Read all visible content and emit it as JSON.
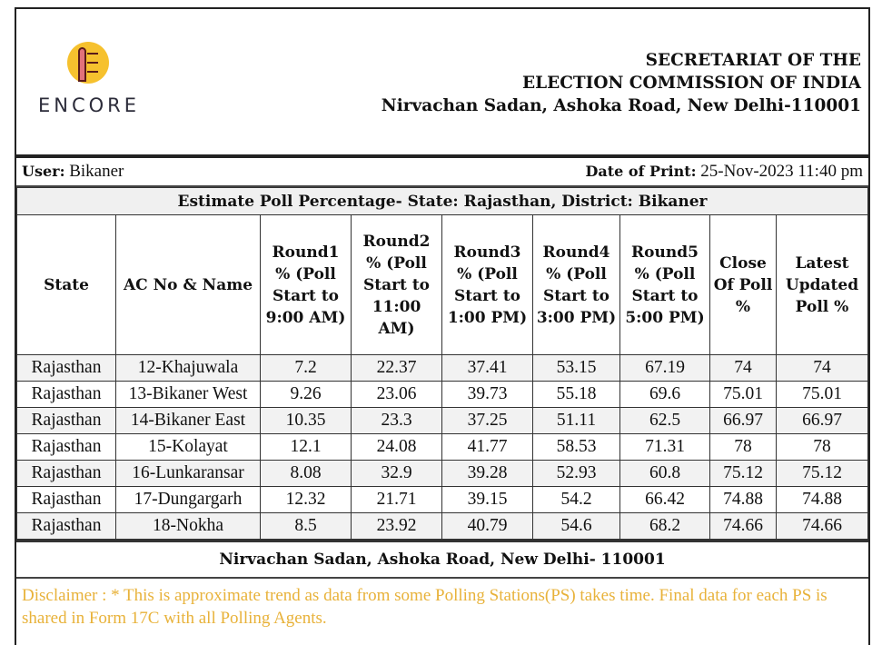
{
  "logo": {
    "brand": "ENCORE"
  },
  "org": {
    "line1": "SECRETARIAT OF THE",
    "line2": "ELECTION COMMISSION OF INDIA",
    "line3": "Nirvachan Sadan, Ashoka Road, New Delhi-110001"
  },
  "meta": {
    "user_label": "User:",
    "user": "Bikaner",
    "print_label": "Date of Print:",
    "print_date": "25-Nov-2023 11:40 pm"
  },
  "report_title": "Estimate Poll Percentage- State: Rajasthan, District: Bikaner",
  "columns": [
    "State",
    "AC No & Name",
    "Round1 % (Poll Start to 9:00 AM)",
    "Round2 % (Poll Start to 11:00 AM)",
    "Round3 % (Poll Start to 1:00 PM)",
    "Round4 % (Poll Start to 3:00 PM)",
    "Round5 % (Poll Start to 5:00 PM)",
    "Close Of Poll %",
    "Latest Updated Poll %"
  ],
  "rows": [
    [
      "Rajasthan",
      "12-Khajuwala",
      "7.2",
      "22.37",
      "37.41",
      "53.15",
      "67.19",
      "74",
      "74"
    ],
    [
      "Rajasthan",
      "13-Bikaner West",
      "9.26",
      "23.06",
      "39.73",
      "55.18",
      "69.6",
      "75.01",
      "75.01"
    ],
    [
      "Rajasthan",
      "14-Bikaner East",
      "10.35",
      "23.3",
      "37.25",
      "51.11",
      "62.5",
      "66.97",
      "66.97"
    ],
    [
      "Rajasthan",
      "15-Kolayat",
      "12.1",
      "24.08",
      "41.77",
      "58.53",
      "71.31",
      "78",
      "78"
    ],
    [
      "Rajasthan",
      "16-Lunkaransar",
      "8.08",
      "32.9",
      "39.28",
      "52.93",
      "60.8",
      "75.12",
      "75.12"
    ],
    [
      "Rajasthan",
      "17-Dungargarh",
      "12.32",
      "21.71",
      "39.15",
      "54.2",
      "66.42",
      "74.88",
      "74.88"
    ],
    [
      "Rajasthan",
      "18-Nokha",
      "8.5",
      "23.92",
      "40.79",
      "54.6",
      "68.2",
      "74.66",
      "74.66"
    ]
  ],
  "footer": "Nirvachan Sadan, Ashoka Road, New Delhi- 110001",
  "disclaimer": "Disclaimer : * This is approximate trend as data from some Polling Stations(PS) takes time. Final data for each PS is shared in Form 17C with all Polling Agents."
}
